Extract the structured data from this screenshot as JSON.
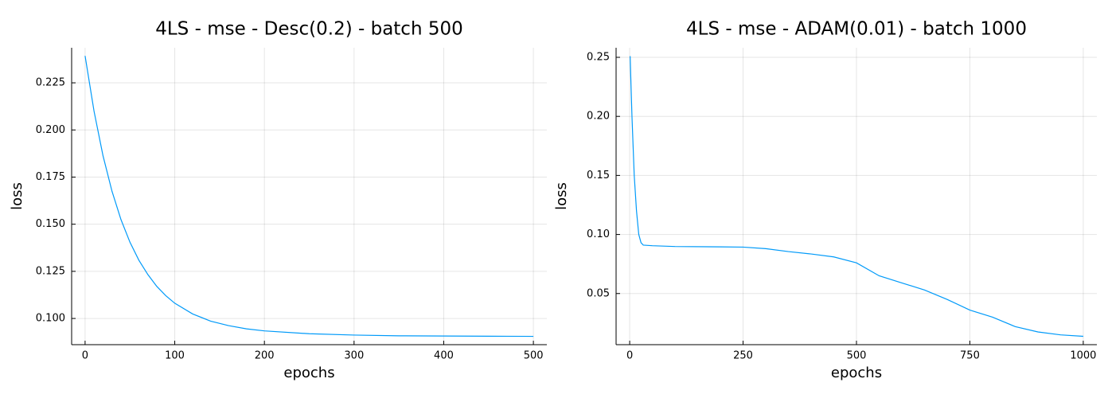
{
  "chart_data": [
    {
      "type": "line",
      "title": "4LS - mse - Desc(0.2) - batch 500",
      "xlabel": "epochs",
      "ylabel": "loss",
      "color": "#009af9",
      "grid": true,
      "x": [
        0,
        10,
        20,
        30,
        40,
        50,
        60,
        70,
        80,
        90,
        100,
        120,
        140,
        160,
        180,
        200,
        250,
        300,
        350,
        400,
        450,
        500
      ],
      "values": [
        0.2393,
        0.2099,
        0.1863,
        0.1675,
        0.1525,
        0.1405,
        0.1309,
        0.1233,
        0.117,
        0.1121,
        0.1081,
        0.1024,
        0.0986,
        0.0962,
        0.0945,
        0.0934,
        0.0919,
        0.0912,
        0.0908,
        0.0907,
        0.0906,
        0.0905
      ],
      "xlim": [
        -15,
        515
      ],
      "xticks": [
        0,
        100,
        200,
        300,
        400,
        500
      ],
      "ylim": [
        0.0861,
        0.2436
      ],
      "yticks": [
        {
          "value": 0.1,
          "label": "0.100"
        },
        0.125,
        {
          "value": 0.15,
          "label": "0.150"
        },
        0.175,
        {
          "value": 0.2,
          "label": "0.200"
        },
        0.225
      ]
    },
    {
      "type": "line",
      "title": "4LS - mse - ADAM(0.01) - batch 1000",
      "xlabel": "epochs",
      "ylabel": "loss",
      "color": "#009af9",
      "grid": true,
      "x": [
        1,
        5,
        10,
        15,
        20,
        25,
        30,
        50,
        100,
        200,
        250,
        300,
        350,
        400,
        450,
        500,
        550,
        600,
        650,
        700,
        750,
        800,
        850,
        900,
        950,
        1000
      ],
      "values": [
        0.251,
        0.2,
        0.15,
        0.12,
        0.1,
        0.093,
        0.091,
        0.0905,
        0.0898,
        0.0895,
        0.0893,
        0.088,
        0.0855,
        0.0835,
        0.081,
        0.076,
        0.065,
        0.059,
        0.053,
        0.045,
        0.036,
        0.03,
        0.022,
        0.0175,
        0.015,
        0.0138
      ],
      "xlim": [
        -30,
        1030
      ],
      "xticks": [
        0,
        250,
        500,
        750,
        1000
      ],
      "ylim": [
        0.0067,
        0.2581
      ],
      "yticks": [
        0.05,
        {
          "value": 0.1,
          "label": "0.10"
        },
        0.15,
        {
          "value": 0.2,
          "label": "0.20"
        },
        0.25
      ]
    }
  ]
}
